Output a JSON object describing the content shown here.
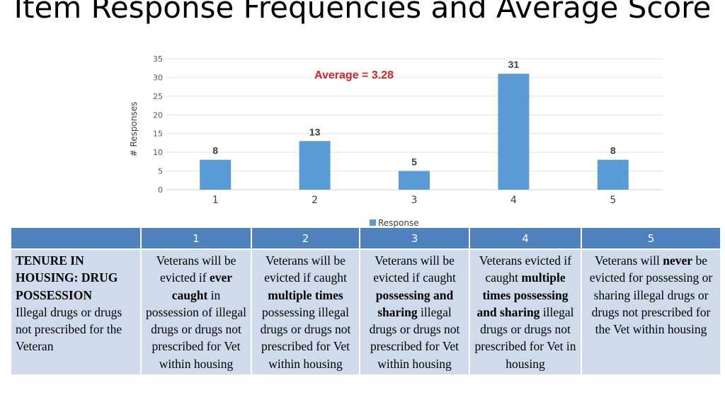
{
  "title": "Item Response Frequencies and Average Score",
  "chart_data": {
    "type": "bar",
    "categories": [
      "1",
      "2",
      "3",
      "4",
      "5"
    ],
    "values": [
      8,
      13,
      5,
      31,
      8
    ],
    "ylabel": "#  Responses",
    "ylim": [
      0,
      35
    ],
    "yticks": [
      0,
      5,
      10,
      15,
      20,
      25,
      30,
      35
    ],
    "legend": "Response",
    "legend_position": "bottom",
    "grid": true,
    "annotation": "Average = 3.28",
    "bar_color": "#5b9bd5",
    "annotation_color": "#e02020"
  },
  "table": {
    "headers": [
      "1",
      "2",
      "3",
      "4",
      "5"
    ],
    "row_label_title": "TENURE IN HOUSING: DRUG POSSESSION",
    "row_label_text": "Illegal drugs or drugs not prescribed for the Veteran",
    "cells": [
      {
        "a": "Veterans will be evicted if ",
        "b": "ever caught",
        "c": " in possession of illegal drugs or drugs not prescribed for Vet within housing"
      },
      {
        "a": "Veterans will be evicted if caught ",
        "b": "multiple times",
        "c": " possessing illegal drugs or drugs not prescribed for Vet within housing"
      },
      {
        "a": "Veterans will be evicted if caught ",
        "b": "possessing and sharing",
        "c": " illegal drugs or drugs not prescribed for Vet within housing"
      },
      {
        "a": "Veterans evicted if caught ",
        "b": "multiple times possessing and sharing",
        "c": " illegal drugs or drugs not prescribed for Vet in housing"
      },
      {
        "a": "Veterans will ",
        "b": "never",
        "c": " be evicted for possessing or sharing illegal drugs or drugs not prescribed for the Vet within housing"
      }
    ],
    "header_color": "#4f81bd",
    "cell_color": "#cfdaea"
  }
}
